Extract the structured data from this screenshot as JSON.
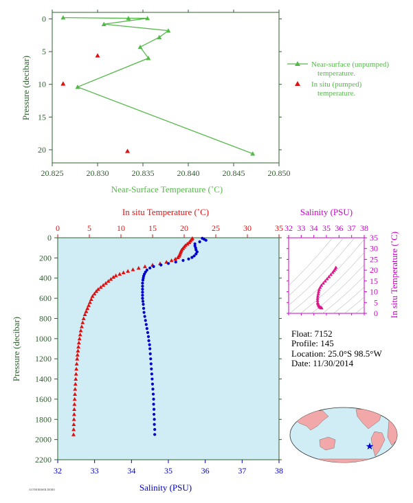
{
  "colors": {
    "near_surface": "#55b84a",
    "temperature": "#dd1111",
    "salinity": "#0000cc",
    "ts_points": "#e0158a",
    "ts_axis": "#cc00cc",
    "profile_bg": "#d0ecf5",
    "axis_text": "#2f5f2f"
  },
  "footer_text": "AUTHORISER DEMO",
  "float_info": {
    "float": "Float:  7152",
    "profile": "Profile:  145",
    "location": "Location:  25.0°S  98.5°W",
    "date": "Date:  11/30/2014"
  },
  "chart_data": [
    {
      "type": "line",
      "xlabel": "Near-Surface Temperature (˚C)",
      "ylabel": "Pressure (decibar)",
      "xlim": [
        20.825,
        20.85
      ],
      "ylim": [
        22,
        -1
      ],
      "xticks": [
        "20.825",
        "20.830",
        "20.835",
        "20.840",
        "20.845",
        "20.850"
      ],
      "yticks": [
        "0",
        "5",
        "10",
        "15",
        "20"
      ],
      "series": [
        {
          "name": "Near-surface (unpumped) temperature.",
          "marker": "triangle",
          "points": [
            [
              20.8262,
              -0.2
            ],
            [
              20.8334,
              -0.1
            ],
            [
              20.8355,
              -0.1
            ],
            [
              20.8307,
              0.8
            ],
            [
              20.8378,
              1.8
            ],
            [
              20.8368,
              2.8
            ],
            [
              20.8347,
              4.3
            ],
            [
              20.8356,
              6.0
            ],
            [
              20.8278,
              10.4
            ],
            [
              20.8471,
              20.6
            ]
          ]
        },
        {
          "name": "In situ (pumped) temperature.",
          "marker": "triangle",
          "points": [
            [
              20.83,
              5.6
            ],
            [
              20.8262,
              9.9
            ],
            [
              20.8333,
              20.2
            ]
          ]
        }
      ]
    },
    {
      "type": "scatter",
      "title_top": "In situ Temperature (˚C)",
      "xlabel": "Salinity (PSU)",
      "ylabel": "Pressure (decibar)",
      "temp_xlim": [
        0,
        35
      ],
      "sal_xlim": [
        32,
        38
      ],
      "ylim": [
        2200,
        0
      ],
      "temp_ticks": [
        "0",
        "5",
        "10",
        "15",
        "20",
        "25",
        "30",
        "35"
      ],
      "sal_ticks": [
        "32",
        "33",
        "34",
        "35",
        "36",
        "37",
        "38"
      ],
      "pressure_ticks": [
        "0",
        "200",
        "400",
        "600",
        "800",
        "1000",
        "1200",
        "1400",
        "1600",
        "1800",
        "2000",
        "2200"
      ],
      "temperature": [
        [
          21.3,
          5
        ],
        [
          21.2,
          15
        ],
        [
          21.0,
          30
        ],
        [
          20.8,
          45
        ],
        [
          20.5,
          60
        ],
        [
          20.2,
          75
        ],
        [
          20.0,
          90
        ],
        [
          19.8,
          105
        ],
        [
          19.6,
          120
        ],
        [
          19.5,
          135
        ],
        [
          19.4,
          150
        ],
        [
          19.3,
          165
        ],
        [
          19.2,
          180
        ],
        [
          19.0,
          195
        ],
        [
          18.6,
          210
        ],
        [
          18.0,
          225
        ],
        [
          17.2,
          240
        ],
        [
          16.2,
          255
        ],
        [
          15.0,
          270
        ],
        [
          13.8,
          285
        ],
        [
          12.8,
          300
        ],
        [
          11.9,
          315
        ],
        [
          11.1,
          330
        ],
        [
          10.4,
          345
        ],
        [
          9.8,
          360
        ],
        [
          9.2,
          375
        ],
        [
          8.8,
          390
        ],
        [
          8.4,
          410
        ],
        [
          8.0,
          430
        ],
        [
          7.6,
          450
        ],
        [
          7.2,
          470
        ],
        [
          6.8,
          490
        ],
        [
          6.4,
          510
        ],
        [
          6.1,
          530
        ],
        [
          5.8,
          555
        ],
        [
          5.5,
          580
        ],
        [
          5.3,
          610
        ],
        [
          5.1,
          640
        ],
        [
          4.9,
          670
        ],
        [
          4.7,
          700
        ],
        [
          4.5,
          730
        ],
        [
          4.3,
          760
        ],
        [
          4.1,
          800
        ],
        [
          3.95,
          840
        ],
        [
          3.8,
          880
        ],
        [
          3.65,
          920
        ],
        [
          3.55,
          960
        ],
        [
          3.45,
          1000
        ],
        [
          3.35,
          1040
        ],
        [
          3.27,
          1080
        ],
        [
          3.2,
          1120
        ],
        [
          3.13,
          1160
        ],
        [
          3.07,
          1200
        ],
        [
          3.0,
          1250
        ],
        [
          2.95,
          1300
        ],
        [
          2.9,
          1350
        ],
        [
          2.85,
          1400
        ],
        [
          2.8,
          1450
        ],
        [
          2.75,
          1500
        ],
        [
          2.72,
          1550
        ],
        [
          2.68,
          1600
        ],
        [
          2.65,
          1650
        ],
        [
          2.62,
          1700
        ],
        [
          2.6,
          1750
        ],
        [
          2.57,
          1800
        ],
        [
          2.54,
          1850
        ],
        [
          2.52,
          1900
        ],
        [
          2.5,
          1950
        ]
      ],
      "salinity": [
        [
          35.92,
          5
        ],
        [
          35.97,
          15
        ],
        [
          36.02,
          25
        ],
        [
          35.85,
          40
        ],
        [
          35.72,
          60
        ],
        [
          35.72,
          80
        ],
        [
          35.74,
          100
        ],
        [
          35.75,
          120
        ],
        [
          35.78,
          140
        ],
        [
          35.75,
          160
        ],
        [
          35.7,
          180
        ],
        [
          35.64,
          195
        ],
        [
          35.55,
          210
        ],
        [
          35.4,
          225
        ],
        [
          35.2,
          240
        ],
        [
          35.0,
          255
        ],
        [
          34.8,
          270
        ],
        [
          34.6,
          285
        ],
        [
          34.5,
          300
        ],
        [
          34.42,
          320
        ],
        [
          34.38,
          340
        ],
        [
          34.35,
          360
        ],
        [
          34.33,
          380
        ],
        [
          34.32,
          400
        ],
        [
          34.31,
          420
        ],
        [
          34.3,
          450
        ],
        [
          34.3,
          480
        ],
        [
          34.3,
          510
        ],
        [
          34.3,
          540
        ],
        [
          34.3,
          570
        ],
        [
          34.3,
          600
        ],
        [
          34.31,
          630
        ],
        [
          34.32,
          660
        ],
        [
          34.33,
          700
        ],
        [
          34.34,
          740
        ],
        [
          34.36,
          780
        ],
        [
          34.38,
          820
        ],
        [
          34.4,
          860
        ],
        [
          34.42,
          900
        ],
        [
          34.44,
          940
        ],
        [
          34.46,
          980
        ],
        [
          34.47,
          1020
        ],
        [
          34.49,
          1060
        ],
        [
          34.5,
          1100
        ],
        [
          34.51,
          1150
        ],
        [
          34.52,
          1200
        ],
        [
          34.53,
          1250
        ],
        [
          34.54,
          1300
        ],
        [
          34.55,
          1350
        ],
        [
          34.56,
          1400
        ],
        [
          34.57,
          1450
        ],
        [
          34.58,
          1500
        ],
        [
          34.59,
          1550
        ],
        [
          34.6,
          1600
        ],
        [
          34.6,
          1650
        ],
        [
          34.61,
          1700
        ],
        [
          34.61,
          1750
        ],
        [
          34.62,
          1800
        ],
        [
          34.62,
          1850
        ],
        [
          34.63,
          1900
        ],
        [
          34.63,
          1950
        ]
      ]
    },
    {
      "type": "scatter",
      "title_top": "Salinity (PSU)",
      "ylabel": "In situ Temperature (˚C)",
      "xlim": [
        32,
        38
      ],
      "ylim": [
        0,
        35
      ],
      "xticks": [
        "32",
        "33",
        "34",
        "35",
        "36",
        "37",
        "38"
      ],
      "yticks": [
        "0",
        "5",
        "10",
        "15",
        "20",
        "25",
        "30",
        "35"
      ],
      "points": [
        [
          35.75,
          21.3
        ],
        [
          35.7,
          20.5
        ],
        [
          35.6,
          19.8
        ],
        [
          35.5,
          19.0
        ],
        [
          35.35,
          18.0
        ],
        [
          35.2,
          17.0
        ],
        [
          35.05,
          16.0
        ],
        [
          34.9,
          15.0
        ],
        [
          34.75,
          14.0
        ],
        [
          34.6,
          13.0
        ],
        [
          34.5,
          12.0
        ],
        [
          34.42,
          11.0
        ],
        [
          34.38,
          10.0
        ],
        [
          34.35,
          9.0
        ],
        [
          34.32,
          8.0
        ],
        [
          34.3,
          7.0
        ],
        [
          34.3,
          6.0
        ],
        [
          34.31,
          5.0
        ],
        [
          34.33,
          4.5
        ],
        [
          34.36,
          4.0
        ],
        [
          34.4,
          3.5
        ],
        [
          34.45,
          3.1
        ],
        [
          34.5,
          2.9
        ],
        [
          34.55,
          2.7
        ],
        [
          34.6,
          2.6
        ],
        [
          34.63,
          2.5
        ]
      ]
    }
  ],
  "map": {
    "float_marker_label": "float-position-star"
  }
}
